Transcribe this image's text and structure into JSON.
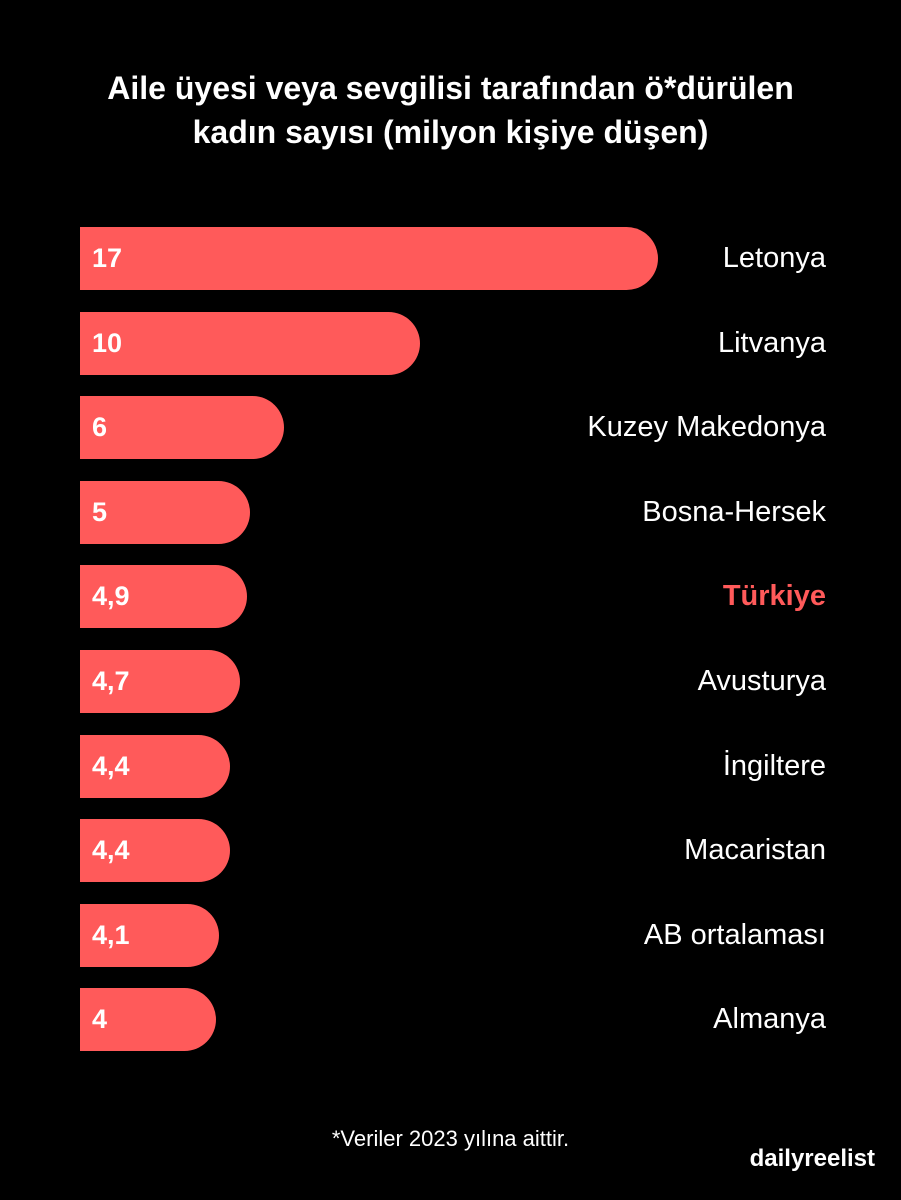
{
  "chart_data": {
    "type": "bar",
    "orientation": "horizontal",
    "title": "Aile üyesi veya sevgilisi tarafından ö*dürülen kadın sayısı (milyon kişiye düşen)",
    "title_lines": [
      "Aile üyesi veya sevgilisi tarafından ö*dürülen",
      "kadın sayısı (milyon kişiye düşen)"
    ],
    "categories": [
      "Letonya",
      "Litvanya",
      "Kuzey Makedonya",
      "Bosna-Hersek",
      "Türkiye",
      "Avusturya",
      "İngiltere",
      "Macaristan",
      "AB ortalaması",
      "Almanya"
    ],
    "values": [
      17,
      10,
      6,
      5,
      4.9,
      4.7,
      4.4,
      4.4,
      4.1,
      4
    ],
    "value_labels": [
      "17",
      "10",
      "6",
      "5",
      "4,9",
      "4,7",
      "4,4",
      "4,4",
      "4,1",
      "4"
    ],
    "highlight_category": "Türkiye",
    "colors": {
      "bar": "#ff5a5a",
      "background": "#000000",
      "text": "#ffffff",
      "highlight_label": "#ff5a5a"
    },
    "grid": false,
    "legend": "none"
  },
  "footnote": "*Veriler 2023 yılına aittir.",
  "brand": "dailyreelist"
}
